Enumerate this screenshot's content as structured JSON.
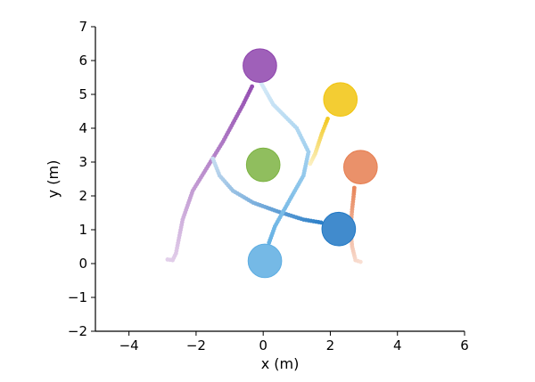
{
  "chart_data": {
    "type": "scatter",
    "xlabel": "x (m)",
    "ylabel": "y (m)",
    "xlim": [
      -5,
      6
    ],
    "ylim": [
      -2,
      7
    ],
    "xticks": [
      -4,
      -2,
      0,
      2,
      4,
      6
    ],
    "yticks": [
      -2,
      -1,
      0,
      1,
      2,
      3,
      4,
      5,
      6,
      7
    ],
    "grid": false,
    "legend": "none",
    "series": [
      {
        "color": "#8e44ad",
        "radius": 0.5,
        "current": [
          -0.1,
          5.85
        ],
        "trail": [
          [
            -2.85,
            0.12
          ],
          [
            -2.7,
            0.1
          ],
          [
            -2.6,
            0.3
          ],
          [
            -2.4,
            1.3
          ],
          [
            -2.1,
            2.15
          ],
          [
            -1.2,
            3.6
          ],
          [
            -0.6,
            4.7
          ],
          [
            -0.3,
            5.3
          ]
        ]
      },
      {
        "color": "#f1c40f",
        "radius": 0.5,
        "current": [
          2.3,
          4.85
        ],
        "trail": [
          [
            1.4,
            2.95
          ],
          [
            1.55,
            3.25
          ],
          [
            1.75,
            3.85
          ],
          [
            1.95,
            4.35
          ]
        ]
      },
      {
        "color": "#e67e50",
        "radius": 0.5,
        "current": [
          2.9,
          2.85
        ],
        "trail": [
          [
            2.9,
            0.05
          ],
          [
            2.75,
            0.1
          ],
          [
            2.65,
            0.5
          ],
          [
            2.6,
            1.0
          ],
          [
            2.65,
            1.6
          ],
          [
            2.7,
            2.05
          ],
          [
            2.72,
            2.3
          ]
        ]
      },
      {
        "color": "#1f77c4",
        "radius": 0.5,
        "current": [
          2.25,
          1.02
        ],
        "trail": [
          [
            -1.5,
            3.1
          ],
          [
            -1.3,
            2.6
          ],
          [
            -0.9,
            2.15
          ],
          [
            -0.3,
            1.8
          ],
          [
            0.4,
            1.55
          ],
          [
            1.2,
            1.3
          ],
          [
            1.8,
            1.2
          ]
        ]
      },
      {
        "color": "#5dade2",
        "radius": 0.5,
        "current": [
          0.05,
          0.08
        ],
        "trail": [
          [
            -0.1,
            5.4
          ],
          [
            0.3,
            4.7
          ],
          [
            1.0,
            4.0
          ],
          [
            1.35,
            3.3
          ],
          [
            1.2,
            2.6
          ],
          [
            0.8,
            1.9
          ],
          [
            0.35,
            1.1
          ],
          [
            0.15,
            0.55
          ]
        ]
      },
      {
        "color": "#7cb342",
        "radius": 0.5,
        "current": [
          0.0,
          2.92
        ],
        "trail": []
      }
    ]
  }
}
